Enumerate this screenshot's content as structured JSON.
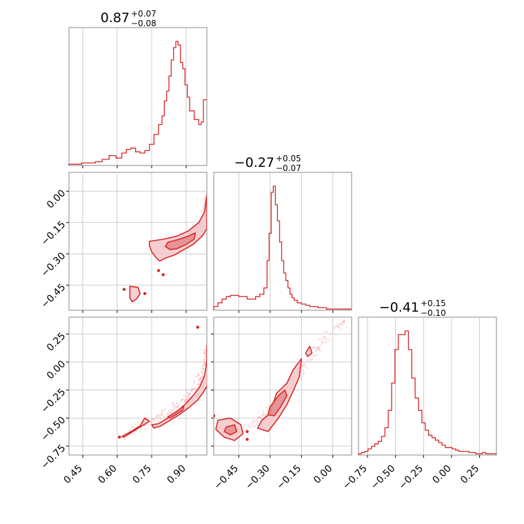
{
  "chart_data": {
    "type": "corner",
    "colors": {
      "primary": "#d62728",
      "fill": "#f4c7c8",
      "points": "#f1a0a1",
      "grid": "#c0c0c0",
      "frame": "#888888"
    },
    "grid": true,
    "params": [
      {
        "range": [
          0.39,
          0.99
        ],
        "ticks": [
          0.45,
          0.6,
          0.75,
          0.9
        ],
        "tick_labels": [
          "0.45",
          "0.60",
          "0.75",
          "0.90"
        ]
      },
      {
        "range": [
          -0.57,
          0.09
        ],
        "ticks": [
          -0.45,
          -0.3,
          -0.15,
          0.0
        ],
        "tick_labels": [
          "−0.45",
          "−0.30",
          "−0.15",
          "0.00"
        ]
      },
      {
        "range": [
          -0.83,
          0.4
        ],
        "ticks": [
          -0.75,
          -0.5,
          -0.25,
          0.0,
          0.25
        ],
        "tick_labels": [
          "−0.75",
          "−0.50",
          "−0.25",
          "0.00",
          "0.25"
        ]
      }
    ],
    "titles": [
      {
        "value": "0.87",
        "upper": "+0.07",
        "lower": "−0.08"
      },
      {
        "value": "−0.27",
        "upper": "+0.05",
        "lower": "−0.07"
      },
      {
        "value": "−0.41",
        "upper": "+0.15",
        "lower": "−0.10"
      }
    ],
    "histograms": [
      {
        "x": [
          0.4,
          0.43,
          0.46,
          0.49,
          0.52,
          0.55,
          0.58,
          0.61,
          0.63,
          0.65,
          0.67,
          0.69,
          0.71,
          0.73,
          0.75,
          0.77,
          0.79,
          0.8,
          0.81,
          0.82,
          0.83,
          0.84,
          0.85,
          0.86,
          0.87,
          0.88,
          0.89,
          0.9,
          0.91,
          0.92,
          0.93,
          0.94,
          0.95,
          0.96,
          0.97,
          0.98
        ],
        "y": [
          0.01,
          0.01,
          0.02,
          0.02,
          0.03,
          0.05,
          0.08,
          0.06,
          0.1,
          0.13,
          0.14,
          0.11,
          0.1,
          0.12,
          0.17,
          0.25,
          0.33,
          0.4,
          0.52,
          0.6,
          0.72,
          0.85,
          0.95,
          1.0,
          0.97,
          0.83,
          0.78,
          0.65,
          0.55,
          0.44,
          0.44,
          0.37,
          0.37,
          0.33,
          0.35,
          0.53
        ]
      },
      {
        "x": [
          -0.56,
          -0.54,
          -0.52,
          -0.5,
          -0.48,
          -0.46,
          -0.44,
          -0.42,
          -0.4,
          -0.38,
          -0.36,
          -0.34,
          -0.32,
          -0.31,
          -0.3,
          -0.29,
          -0.28,
          -0.27,
          -0.26,
          -0.25,
          -0.24,
          -0.23,
          -0.22,
          -0.21,
          -0.2,
          -0.19,
          -0.18,
          -0.16,
          -0.14,
          -0.12,
          -0.1,
          -0.08,
          -0.06,
          -0.04,
          -0.02,
          0.0,
          0.02,
          0.04,
          0.06,
          0.08
        ],
        "y": [
          0.03,
          0.06,
          0.09,
          0.11,
          0.12,
          0.12,
          0.11,
          0.11,
          0.09,
          0.09,
          0.11,
          0.13,
          0.18,
          0.4,
          0.62,
          0.95,
          1.0,
          0.85,
          0.72,
          0.55,
          0.4,
          0.3,
          0.24,
          0.18,
          0.13,
          0.1,
          0.08,
          0.06,
          0.05,
          0.04,
          0.03,
          0.03,
          0.02,
          0.02,
          0.01,
          0.01,
          0.01,
          0.01,
          0.01,
          0.01
        ]
      },
      {
        "x": [
          -0.82,
          -0.79,
          -0.76,
          -0.73,
          -0.7,
          -0.67,
          -0.64,
          -0.61,
          -0.58,
          -0.55,
          -0.52,
          -0.49,
          -0.46,
          -0.43,
          -0.4,
          -0.37,
          -0.34,
          -0.31,
          -0.28,
          -0.25,
          -0.22,
          -0.19,
          -0.16,
          -0.13,
          -0.1,
          -0.07,
          -0.04,
          -0.01,
          0.02,
          0.05,
          0.08,
          0.11,
          0.14,
          0.17,
          0.2,
          0.23,
          0.26,
          0.29,
          0.32,
          0.35,
          0.38
        ],
        "y": [
          0.01,
          0.02,
          0.03,
          0.05,
          0.07,
          0.09,
          0.11,
          0.15,
          0.22,
          0.36,
          0.58,
          0.85,
          0.97,
          0.97,
          1.0,
          0.85,
          0.62,
          0.46,
          0.36,
          0.26,
          0.2,
          0.16,
          0.14,
          0.12,
          0.1,
          0.08,
          0.06,
          0.06,
          0.05,
          0.04,
          0.03,
          0.03,
          0.03,
          0.02,
          0.02,
          0.01,
          0.01,
          0.02,
          0.01,
          0.01,
          0.01
        ]
      }
    ],
    "pairs": [
      {
        "xi": 0,
        "yi": 1,
        "ridge": [
          [
            0.77,
            -0.29
          ],
          [
            0.81,
            -0.27
          ],
          [
            0.85,
            -0.255
          ],
          [
            0.89,
            -0.235
          ],
          [
            0.93,
            -0.21
          ],
          [
            0.96,
            -0.175
          ],
          [
            0.985,
            -0.1
          ],
          [
            0.99,
            -0.04
          ]
        ],
        "outer": [
          [
            [
              0.74,
              -0.24
            ],
            [
              0.8,
              -0.23
            ],
            [
              0.86,
              -0.215
            ],
            [
              0.91,
              -0.19
            ],
            [
              0.955,
              -0.15
            ],
            [
              0.98,
              -0.1
            ],
            [
              0.99,
              -0.02
            ],
            [
              0.99,
              -0.18
            ],
            [
              0.97,
              -0.215
            ],
            [
              0.93,
              -0.255
            ],
            [
              0.89,
              -0.28
            ],
            [
              0.85,
              -0.305
            ],
            [
              0.81,
              -0.32
            ],
            [
              0.785,
              -0.335
            ],
            [
              0.77,
              -0.32
            ],
            [
              0.75,
              -0.29
            ],
            [
              0.74,
              -0.26
            ]
          ],
          [
            [
              0.655,
              -0.455
            ],
            [
              0.69,
              -0.46
            ],
            [
              0.7,
              -0.49
            ],
            [
              0.685,
              -0.515
            ],
            [
              0.665,
              -0.53
            ],
            [
              0.655,
              -0.51
            ],
            [
              0.655,
              -0.48
            ]
          ]
        ],
        "inner": [
          [
            [
              0.82,
              -0.245
            ],
            [
              0.87,
              -0.23
            ],
            [
              0.91,
              -0.215
            ],
            [
              0.94,
              -0.2
            ],
            [
              0.935,
              -0.23
            ],
            [
              0.9,
              -0.255
            ],
            [
              0.86,
              -0.275
            ],
            [
              0.83,
              -0.28
            ],
            [
              0.81,
              -0.265
            ]
          ]
        ],
        "extras": [
          [
            0.63,
            -0.47
          ],
          [
            0.72,
            -0.49
          ],
          [
            0.78,
            -0.38
          ],
          [
            0.8,
            -0.4
          ]
        ]
      },
      {
        "xi": 0,
        "yi": 2,
        "ridge": [
          [
            0.63,
            -0.66
          ],
          [
            0.7,
            -0.58
          ],
          [
            0.77,
            -0.51
          ],
          [
            0.83,
            -0.44
          ],
          [
            0.88,
            -0.37
          ],
          [
            0.92,
            -0.29
          ],
          [
            0.95,
            -0.2
          ],
          [
            0.975,
            -0.1
          ],
          [
            0.99,
            0.05
          ],
          [
            0.99,
            0.15
          ]
        ],
        "outer": [
          [
            [
              0.78,
              -0.55
            ],
            [
              0.82,
              -0.5
            ],
            [
              0.86,
              -0.44
            ],
            [
              0.9,
              -0.37
            ],
            [
              0.93,
              -0.3
            ],
            [
              0.96,
              -0.22
            ],
            [
              0.98,
              -0.12
            ],
            [
              0.99,
              0.0
            ],
            [
              0.99,
              0.15
            ],
            [
              0.995,
              -0.2
            ],
            [
              0.975,
              -0.27
            ],
            [
              0.95,
              -0.34
            ],
            [
              0.91,
              -0.41
            ],
            [
              0.87,
              -0.47
            ],
            [
              0.83,
              -0.52
            ],
            [
              0.79,
              -0.57
            ],
            [
              0.76,
              -0.59
            ],
            [
              0.75,
              -0.56
            ]
          ],
          [
            [
              0.62,
              -0.665
            ],
            [
              0.66,
              -0.62
            ],
            [
              0.7,
              -0.57
            ],
            [
              0.72,
              -0.5
            ],
            [
              0.74,
              -0.53
            ],
            [
              0.7,
              -0.58
            ],
            [
              0.66,
              -0.63
            ],
            [
              0.63,
              -0.67
            ]
          ]
        ],
        "inner": [
          [
            [
              0.82,
              -0.49
            ],
            [
              0.86,
              -0.44
            ],
            [
              0.89,
              -0.39
            ],
            [
              0.885,
              -0.43
            ],
            [
              0.855,
              -0.47
            ],
            [
              0.83,
              -0.5
            ]
          ]
        ],
        "extras": [
          [
            0.95,
            0.31
          ],
          [
            0.61,
            -0.67
          ]
        ]
      },
      {
        "xi": 1,
        "yi": 2,
        "ridge": [
          [
            -0.55,
            -0.59
          ],
          [
            -0.46,
            -0.62
          ],
          [
            -0.38,
            -0.55
          ],
          [
            -0.32,
            -0.47
          ],
          [
            -0.28,
            -0.39
          ],
          [
            -0.24,
            -0.3
          ],
          [
            -0.2,
            -0.2
          ],
          [
            -0.16,
            -0.1
          ],
          [
            -0.12,
            0.0
          ],
          [
            -0.08,
            0.1
          ],
          [
            -0.04,
            0.2
          ],
          [
            0.02,
            0.32
          ],
          [
            0.06,
            0.37
          ]
        ],
        "outer": [
          [
            [
              -0.3,
              -0.46
            ],
            [
              -0.27,
              -0.28
            ],
            [
              -0.22,
              -0.19
            ],
            [
              -0.19,
              -0.07
            ],
            [
              -0.15,
              0.03
            ],
            [
              -0.16,
              -0.13
            ],
            [
              -0.19,
              -0.26
            ],
            [
              -0.22,
              -0.38
            ],
            [
              -0.26,
              -0.5
            ],
            [
              -0.31,
              -0.62
            ],
            [
              -0.36,
              -0.59
            ],
            [
              -0.34,
              -0.52
            ]
          ],
          [
            [
              -0.55,
              -0.52
            ],
            [
              -0.49,
              -0.5
            ],
            [
              -0.44,
              -0.56
            ],
            [
              -0.43,
              -0.64
            ],
            [
              -0.47,
              -0.7
            ],
            [
              -0.52,
              -0.67
            ],
            [
              -0.56,
              -0.6
            ]
          ],
          [
            [
              -0.13,
              0.08
            ],
            [
              -0.11,
              0.14
            ],
            [
              -0.1,
              0.08
            ],
            [
              -0.12,
              0.05
            ]
          ]
        ],
        "inner": [
          [
            [
              -0.3,
              -0.4
            ],
            [
              -0.26,
              -0.3
            ],
            [
              -0.23,
              -0.25
            ],
            [
              -0.22,
              -0.3
            ],
            [
              -0.25,
              -0.4
            ],
            [
              -0.28,
              -0.48
            ],
            [
              -0.31,
              -0.47
            ]
          ],
          [
            [
              -0.51,
              -0.58
            ],
            [
              -0.47,
              -0.56
            ],
            [
              -0.46,
              -0.62
            ],
            [
              -0.49,
              -0.65
            ],
            [
              -0.52,
              -0.62
            ]
          ]
        ],
        "extras": [
          [
            -0.41,
            -0.69
          ],
          [
            -0.41,
            -0.62
          ],
          [
            -0.57,
            -0.48
          ]
        ]
      }
    ]
  }
}
